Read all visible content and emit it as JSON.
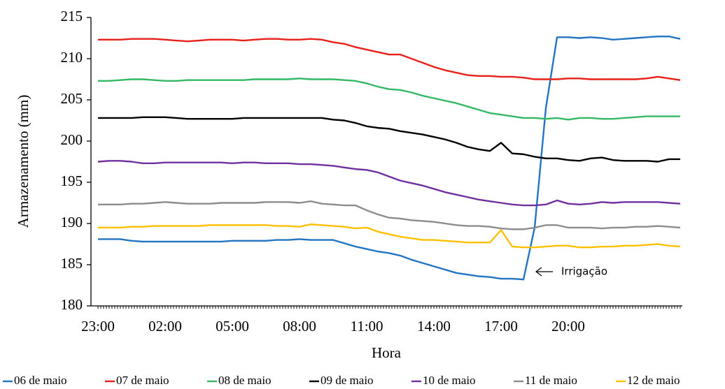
{
  "chart_data": {
    "type": "line",
    "x_label": "Hora",
    "y_label": "Armazenamento (mm)",
    "categories": [
      "23:00",
      null,
      null,
      null,
      null,
      null,
      "02:00",
      null,
      null,
      null,
      null,
      null,
      "05:00",
      null,
      null,
      null,
      null,
      null,
      "08:00",
      null,
      null,
      null,
      null,
      null,
      "11:00",
      null,
      null,
      null,
      null,
      null,
      "14:00",
      null,
      null,
      null,
      null,
      null,
      "17:00",
      null,
      null,
      null,
      null,
      null,
      "20:00",
      null,
      null,
      null,
      null,
      null,
      null,
      null,
      null,
      null,
      null
    ],
    "ylim": [
      180,
      215
    ],
    "yticks": [
      180,
      185,
      190,
      195,
      200,
      205,
      210,
      215
    ],
    "legend": "bottom",
    "annotations": [
      {
        "text": "Irrigação"
      }
    ],
    "series": [
      {
        "name": "06 de maio",
        "color": "#2474c4",
        "values": [
          188.1,
          188.1,
          188.1,
          187.9,
          187.8,
          187.8,
          187.8,
          187.8,
          187.8,
          187.8,
          187.8,
          187.8,
          187.9,
          187.9,
          187.9,
          187.9,
          188.0,
          188.0,
          188.1,
          188.0,
          188.0,
          188.0,
          187.6,
          187.2,
          186.9,
          186.6,
          186.4,
          186.1,
          185.6,
          185.2,
          184.8,
          184.4,
          184.0,
          183.8,
          183.6,
          183.5,
          183.3,
          183.3,
          183.2,
          189.5,
          204,
          212.6,
          212.6,
          212.5,
          212.6,
          212.5,
          212.3,
          212.4,
          212.5,
          212.6,
          212.7,
          212.7,
          212.4
        ]
      },
      {
        "name": "07 de maio",
        "color": "#e8201a",
        "values": [
          212.3,
          212.3,
          212.3,
          212.4,
          212.4,
          212.4,
          212.3,
          212.2,
          212.1,
          212.2,
          212.3,
          212.3,
          212.3,
          212.2,
          212.3,
          212.4,
          212.4,
          212.3,
          212.3,
          212.4,
          212.3,
          212.0,
          211.8,
          211.4,
          211.1,
          210.8,
          210.5,
          210.5,
          210.0,
          209.5,
          209.0,
          208.6,
          208.3,
          208.0,
          207.9,
          207.9,
          207.8,
          207.8,
          207.7,
          207.5,
          207.5,
          207.5,
          207.6,
          207.6,
          207.5,
          207.5,
          207.5,
          207.5,
          207.5,
          207.6,
          207.8,
          207.6,
          207.4
        ]
      },
      {
        "name": "08 de maio",
        "color": "#34b865",
        "values": [
          207.3,
          207.3,
          207.4,
          207.5,
          207.5,
          207.4,
          207.3,
          207.3,
          207.4,
          207.4,
          207.4,
          207.4,
          207.4,
          207.4,
          207.5,
          207.5,
          207.5,
          207.5,
          207.6,
          207.5,
          207.5,
          207.5,
          207.4,
          207.3,
          207.0,
          206.6,
          206.3,
          206.2,
          205.9,
          205.5,
          205.2,
          204.9,
          204.6,
          204.2,
          203.8,
          203.4,
          203.2,
          203.0,
          202.8,
          202.8,
          202.7,
          202.8,
          202.6,
          202.8,
          202.8,
          202.7,
          202.7,
          202.8,
          202.9,
          203.0,
          203.0,
          203.0,
          203.0
        ]
      },
      {
        "name": "09 de maio",
        "color": "#000000",
        "values": [
          202.8,
          202.8,
          202.8,
          202.8,
          202.9,
          202.9,
          202.9,
          202.8,
          202.7,
          202.7,
          202.7,
          202.7,
          202.7,
          202.8,
          202.8,
          202.8,
          202.8,
          202.8,
          202.8,
          202.8,
          202.8,
          202.6,
          202.5,
          202.2,
          201.8,
          201.6,
          201.5,
          201.2,
          201.0,
          200.8,
          200.5,
          200.2,
          199.8,
          199.3,
          199.0,
          198.8,
          199.8,
          198.5,
          198.4,
          198.1,
          197.9,
          197.9,
          197.7,
          197.6,
          197.9,
          198.0,
          197.7,
          197.6,
          197.6,
          197.6,
          197.5,
          197.8,
          197.8
        ]
      },
      {
        "name": "10 de maio",
        "color": "#7030a0",
        "values": [
          197.5,
          197.6,
          197.6,
          197.5,
          197.3,
          197.3,
          197.4,
          197.4,
          197.4,
          197.4,
          197.4,
          197.4,
          197.3,
          197.4,
          197.4,
          197.3,
          197.3,
          197.3,
          197.2,
          197.2,
          197.1,
          197.0,
          196.8,
          196.6,
          196.5,
          196.2,
          195.7,
          195.2,
          194.9,
          194.6,
          194.2,
          193.8,
          193.5,
          193.2,
          192.9,
          192.7,
          192.5,
          192.3,
          192.2,
          192.2,
          192.3,
          192.8,
          192.4,
          192.3,
          192.4,
          192.6,
          192.5,
          192.6,
          192.6,
          192.6,
          192.6,
          192.5,
          192.4
        ]
      },
      {
        "name": "11 de maio",
        "color": "#8c8c8c",
        "values": [
          192.3,
          192.3,
          192.3,
          192.4,
          192.4,
          192.5,
          192.6,
          192.5,
          192.4,
          192.4,
          192.4,
          192.5,
          192.5,
          192.5,
          192.5,
          192.6,
          192.6,
          192.6,
          192.5,
          192.7,
          192.4,
          192.3,
          192.2,
          192.2,
          191.6,
          191.1,
          190.7,
          190.6,
          190.4,
          190.3,
          190.2,
          190.0,
          189.8,
          189.7,
          189.7,
          189.6,
          189.4,
          189.3,
          189.3,
          189.5,
          189.8,
          189.8,
          189.5,
          189.5,
          189.5,
          189.4,
          189.5,
          189.5,
          189.6,
          189.6,
          189.7,
          189.6,
          189.5
        ]
      },
      {
        "name": "12 de maio",
        "color": "#ffc000",
        "values": [
          189.5,
          189.5,
          189.5,
          189.6,
          189.6,
          189.7,
          189.7,
          189.7,
          189.7,
          189.7,
          189.8,
          189.8,
          189.8,
          189.8,
          189.8,
          189.8,
          189.7,
          189.7,
          189.6,
          189.9,
          189.8,
          189.7,
          189.6,
          189.4,
          189.5,
          189.0,
          188.7,
          188.4,
          188.2,
          188.0,
          188.0,
          187.9,
          187.8,
          187.7,
          187.7,
          187.7,
          189.2,
          187.2,
          187.1,
          187.1,
          187.2,
          187.3,
          187.3,
          187.1,
          187.1,
          187.2,
          187.2,
          187.3,
          187.3,
          187.4,
          187.5,
          187.3,
          187.2
        ]
      }
    ]
  }
}
